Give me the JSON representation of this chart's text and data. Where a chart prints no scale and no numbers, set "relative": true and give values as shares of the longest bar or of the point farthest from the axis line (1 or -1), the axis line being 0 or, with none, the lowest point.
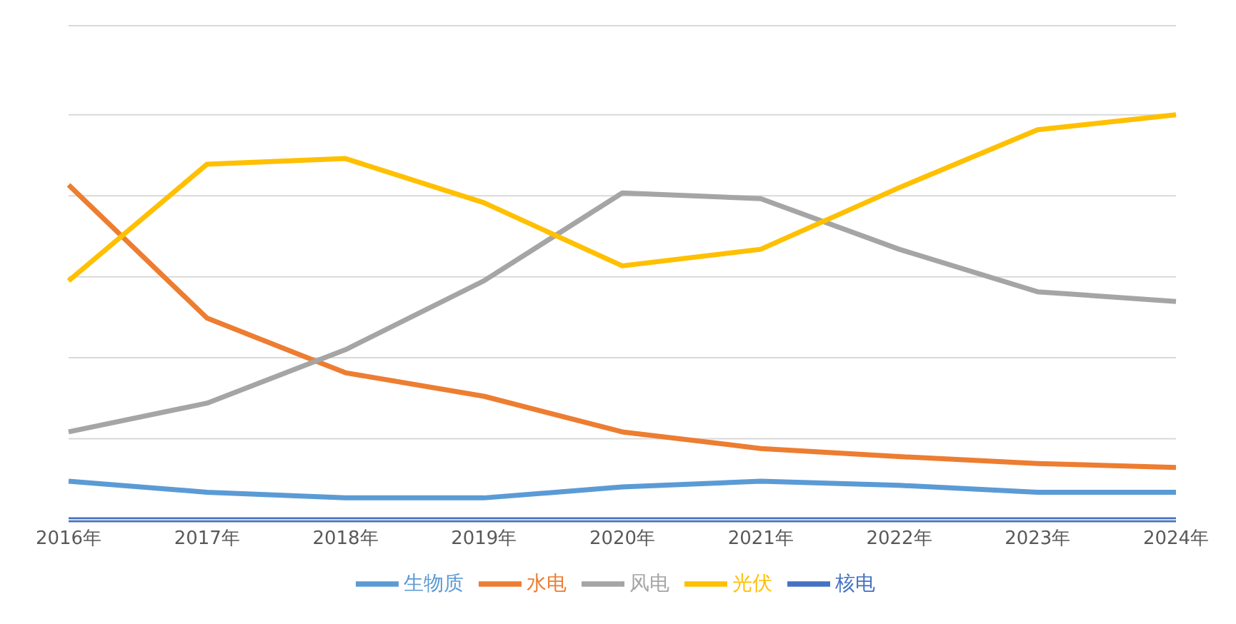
{
  "chart_data": {
    "type": "line",
    "relative": true,
    "grid": "y",
    "legend": "bottom",
    "marker": "none",
    "line_style": "solid",
    "categories": [
      "2016年",
      "2017年",
      "2018年",
      "2019年",
      "2020年",
      "2021年",
      "2022年",
      "2023年",
      "2024年"
    ],
    "series": [
      {
        "name": "生物质",
        "color": "#5b9bd5",
        "values": [
          0.095,
          0.068,
          0.054,
          0.054,
          0.081,
          0.095,
          0.085,
          0.068,
          0.068
        ]
      },
      {
        "name": "水电",
        "color": "#ed7d31",
        "values": [
          0.827,
          0.498,
          0.363,
          0.305,
          0.217,
          0.176,
          0.156,
          0.139,
          0.129
        ]
      },
      {
        "name": "风电",
        "color": "#a5a5a5",
        "values": [
          0.217,
          0.288,
          0.42,
          0.59,
          0.807,
          0.793,
          0.668,
          0.563,
          0.539
        ]
      },
      {
        "name": "光伏",
        "color": "#ffc000",
        "values": [
          0.59,
          0.878,
          0.892,
          0.783,
          0.627,
          0.668,
          0.82,
          0.963,
          1
        ]
      },
      {
        "name": "核电",
        "color": "#4472c4",
        "values": [
          0,
          0,
          0,
          0,
          0,
          0,
          0,
          0,
          0
        ]
      }
    ]
  }
}
